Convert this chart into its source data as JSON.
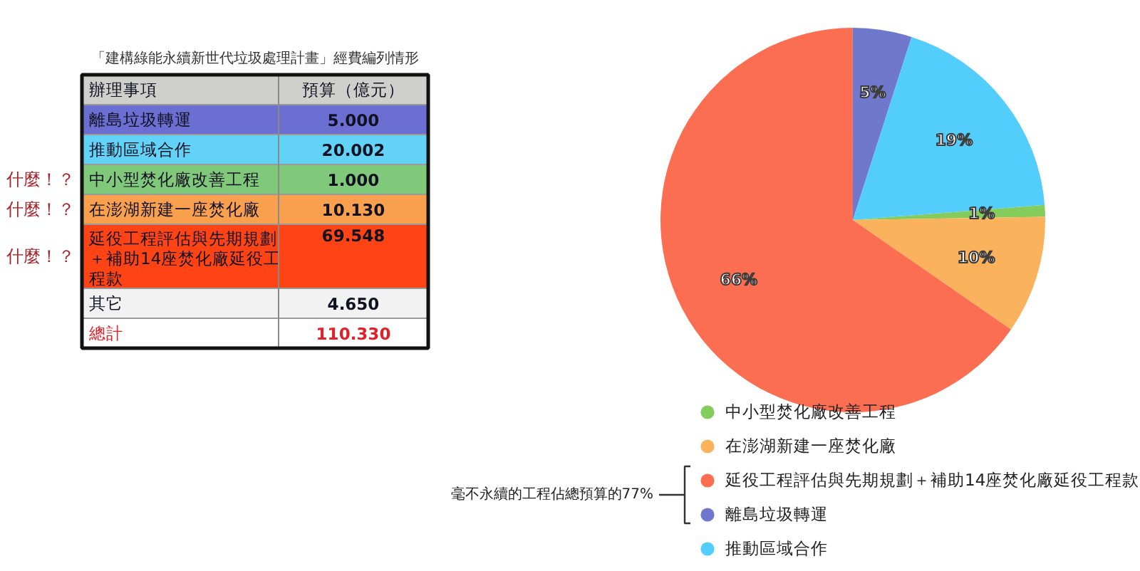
{
  "chart_data": [
    {
      "type": "other",
      "title": "「建構綠能永續新世代垃圾處理計畫」經費編列情形",
      "categories": [
        "離島垃圾轉運",
        "推動區域合作",
        "中小型焚化廠改善工程",
        "在澎湖新建一座焚化廠",
        "延役工程評估與先期規劃＋補助14座焚化廠延役工程款",
        "其它",
        "總計"
      ],
      "value_labels": [
        "5.000",
        "20.002",
        "1.000",
        "10.130",
        "69.548",
        "4.650",
        "110.330"
      ],
      "colors": [
        "#6b6fd2",
        "#62d2f7",
        "#80c97a",
        "#f8a04e",
        "#fe4415",
        "#f2f2f2",
        "#ffffff"
      ],
      "annotations": [
        "辦理事項",
        "預算（億元）",
        {
          "text": "什麼！？",
          "y": "中小型焚化廠改善工程"
        },
        {
          "text": "什麼！？",
          "y": "在澎湖新建一座焚化廠"
        },
        {
          "text": "什麼！？",
          "y": "延役工程評估與先期規劃＋補助14座焚化廠延役工程款"
        }
      ]
    },
    {
      "type": "pie",
      "categories": [
        "中小型焚化廠改善工程",
        "在澎湖新建一座焚化廠",
        "延役工程評估與先期規劃＋補助14座焚化廠延役工程款",
        "離島垃圾轉運",
        "推動區域合作"
      ],
      "values": [
        1,
        10,
        66,
        5,
        19
      ],
      "colors": [
        "#84cc5c",
        "#fbb25d",
        "#fc6e51",
        "#6f78cc",
        "#53cdfb"
      ],
      "value_labels": [
        "1%",
        "10%",
        "66%",
        "5%",
        "19%"
      ],
      "legend": "bottom",
      "annotations": [
        "毫不永續的工程佔總預算的77%"
      ]
    }
  ]
}
